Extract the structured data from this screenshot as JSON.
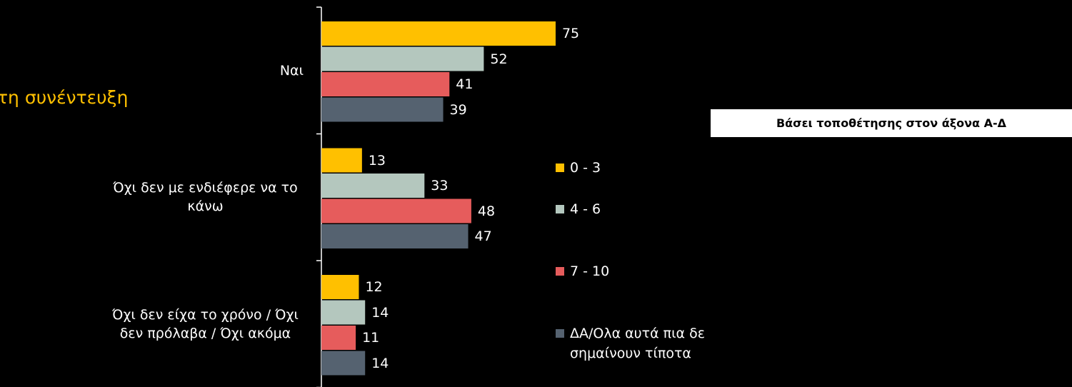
{
  "chart_data": {
    "type": "barh",
    "title": "τη συνέντευξη",
    "annotation": "Βάσει τοποθέτησης στον άξονα Α-Δ",
    "categories": [
      "Ναι",
      "Όχι δεν με ενδιέφερε να το κάνω",
      "Όχι δεν είχα το χρόνο / Όχι δεν πρόλαβα / Όχι ακόμα"
    ],
    "series": [
      {
        "name": "0 - 3",
        "color": "#FFC000",
        "values": [
          75,
          13,
          12
        ]
      },
      {
        "name": "4 - 6",
        "color": "#B4C7BE",
        "values": [
          52,
          33,
          14
        ]
      },
      {
        "name": "7 - 10",
        "color": "#E65C5C",
        "values": [
          41,
          48,
          11
        ]
      },
      {
        "name": "ΔΑ/Ολα αυτά πια δε σημαίνουν τίποτα",
        "color": "#556270",
        "values": [
          39,
          47,
          14
        ]
      }
    ],
    "xlim": [
      0,
      100
    ]
  }
}
